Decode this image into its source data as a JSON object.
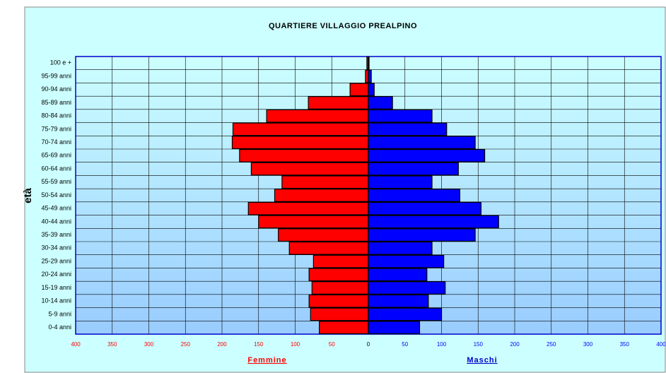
{
  "chart_data": {
    "type": "population-pyramid",
    "title": "QUARTIERE VILLAGGIO PREALPINO",
    "y_axis_label": "età",
    "categories": [
      "0-4 anni",
      "5-9 anni",
      "10-14 anni",
      "15-19 anni",
      "20-24 anni",
      "25-29 anni",
      "30-34 anni",
      "35-39 anni",
      "40-44 anni",
      "45-49 anni",
      "50-54 anni",
      "55-59 anni",
      "60-64 anni",
      "65-69 anni",
      "70-74 anni",
      "75-79 anni",
      "80-84 anni",
      "85-89 anni",
      "90-94 anni",
      "95-99 anni",
      "100 e +"
    ],
    "series": [
      {
        "name": "Femmine",
        "color": "#ff0000",
        "values": [
          -67,
          -79,
          -81,
          -77,
          -81,
          -75,
          -108,
          -123,
          -150,
          -164,
          -128,
          -118,
          -160,
          -176,
          -186,
          -185,
          -139,
          -82,
          -25,
          -4,
          -2
        ]
      },
      {
        "name": "Maschi",
        "color": "#0000ff",
        "values": [
          70,
          100,
          82,
          105,
          80,
          103,
          87,
          146,
          178,
          154,
          125,
          87,
          123,
          159,
          146,
          107,
          87,
          33,
          8,
          4,
          1
        ]
      }
    ],
    "xlim": [
      -400,
      400
    ],
    "xticks": [
      {
        "value": -400,
        "label": "400"
      },
      {
        "value": -350,
        "label": "350"
      },
      {
        "value": -300,
        "label": "300"
      },
      {
        "value": -250,
        "label": "250"
      },
      {
        "value": -200,
        "label": "200"
      },
      {
        "value": -150,
        "label": "150"
      },
      {
        "value": -100,
        "label": "100"
      },
      {
        "value": -50,
        "label": "50"
      },
      0,
      50,
      100,
      150,
      200,
      250,
      300,
      350,
      400
    ],
    "grid": true
  }
}
